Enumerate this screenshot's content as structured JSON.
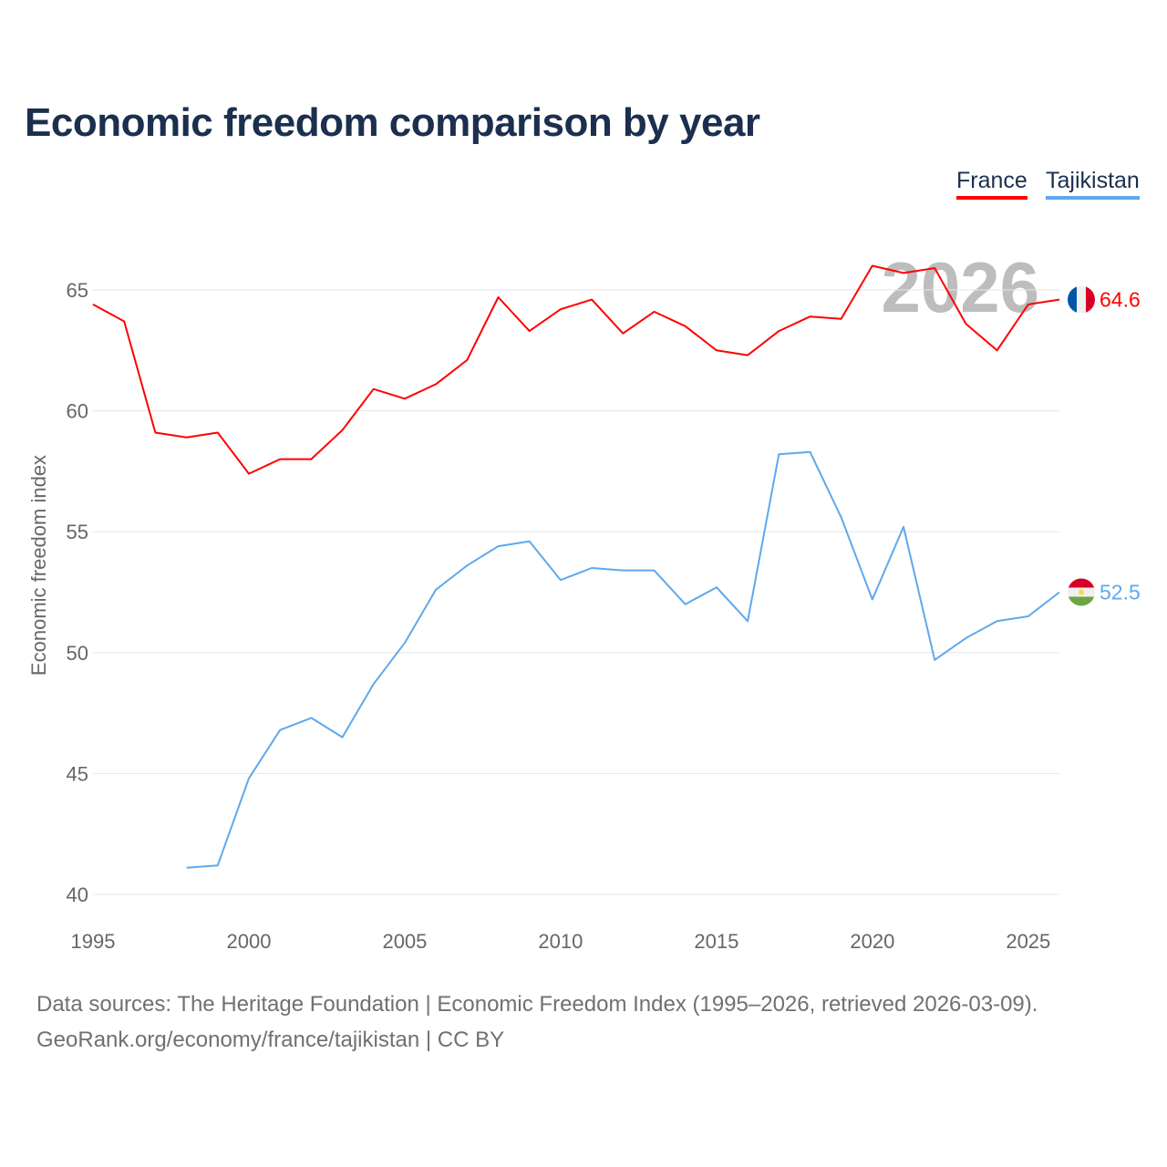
{
  "chart_data": {
    "type": "line",
    "title": "Economic freedom comparison by year",
    "xlabel": "",
    "ylabel": "Economic freedom index",
    "xlim": [
      1995,
      2026
    ],
    "ylim": [
      40,
      67
    ],
    "x_ticks": [
      1995,
      2000,
      2005,
      2010,
      2015,
      2020,
      2025
    ],
    "y_ticks": [
      40,
      45,
      50,
      55,
      60,
      65
    ],
    "grid": true,
    "legend_placement": "top-right",
    "year_watermark": "2026",
    "series": [
      {
        "name": "France",
        "color": "#ff0000",
        "end_label": "64.6",
        "x": [
          1995,
          1996,
          1997,
          1998,
          1999,
          2000,
          2001,
          2002,
          2003,
          2004,
          2005,
          2006,
          2007,
          2008,
          2009,
          2010,
          2011,
          2012,
          2013,
          2014,
          2015,
          2016,
          2017,
          2018,
          2019,
          2020,
          2021,
          2022,
          2023,
          2024,
          2025,
          2026
        ],
        "values": [
          64.4,
          63.7,
          59.1,
          58.9,
          59.1,
          57.4,
          58.0,
          58.0,
          59.2,
          60.9,
          60.5,
          61.1,
          62.1,
          64.7,
          63.3,
          64.2,
          64.6,
          63.2,
          64.1,
          63.5,
          62.5,
          62.3,
          63.3,
          63.9,
          63.8,
          66.0,
          65.7,
          65.9,
          63.6,
          62.5,
          64.4,
          64.6
        ]
      },
      {
        "name": "Tajikistan",
        "color": "#5ea8ec",
        "end_label": "52.5",
        "x": [
          1998,
          1999,
          2000,
          2001,
          2002,
          2003,
          2004,
          2005,
          2006,
          2007,
          2008,
          2009,
          2010,
          2011,
          2012,
          2013,
          2014,
          2015,
          2016,
          2017,
          2018,
          2019,
          2020,
          2021,
          2022,
          2023,
          2024,
          2025,
          2026
        ],
        "values": [
          41.1,
          41.2,
          44.8,
          46.8,
          47.3,
          46.5,
          48.7,
          50.4,
          52.6,
          53.6,
          54.4,
          54.6,
          53.0,
          53.5,
          53.4,
          53.4,
          52.0,
          52.7,
          51.3,
          58.2,
          58.3,
          55.6,
          52.2,
          55.2,
          49.7,
          50.6,
          51.3,
          51.5,
          52.5
        ]
      }
    ]
  },
  "footer": {
    "line1": "Data sources: The Heritage Foundation | Economic Freedom Index (1995–2026, retrieved 2026-03-09).",
    "line2": "GeoRank.org/economy/france/tajikistan | CC BY"
  }
}
